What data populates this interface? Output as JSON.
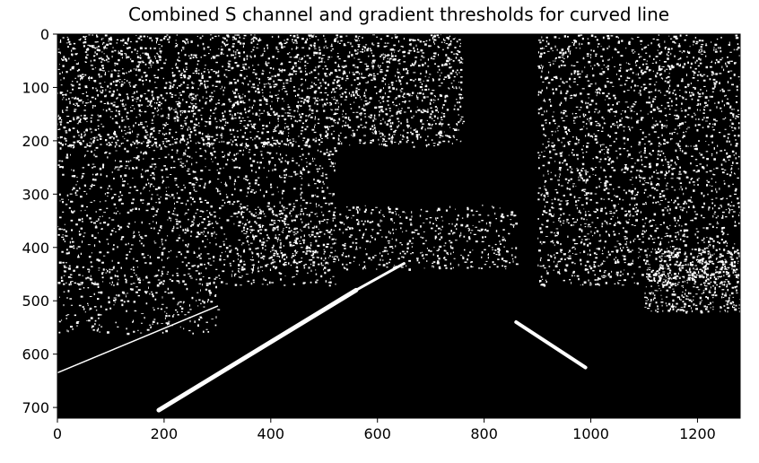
{
  "title": "Combined S channel and gradient thresholds for curved line",
  "image_panel": {
    "description": "binary thresholded road image",
    "x_range": [
      0,
      1280
    ],
    "y_range": [
      0,
      720
    ],
    "x_ticks": [
      0,
      200,
      400,
      600,
      800,
      1000,
      1200
    ],
    "y_ticks": [
      0,
      100,
      200,
      300,
      400,
      500,
      600,
      700
    ],
    "colors": {
      "background": "#000000",
      "foreground": "#ffffff",
      "frame": "#000000"
    }
  }
}
